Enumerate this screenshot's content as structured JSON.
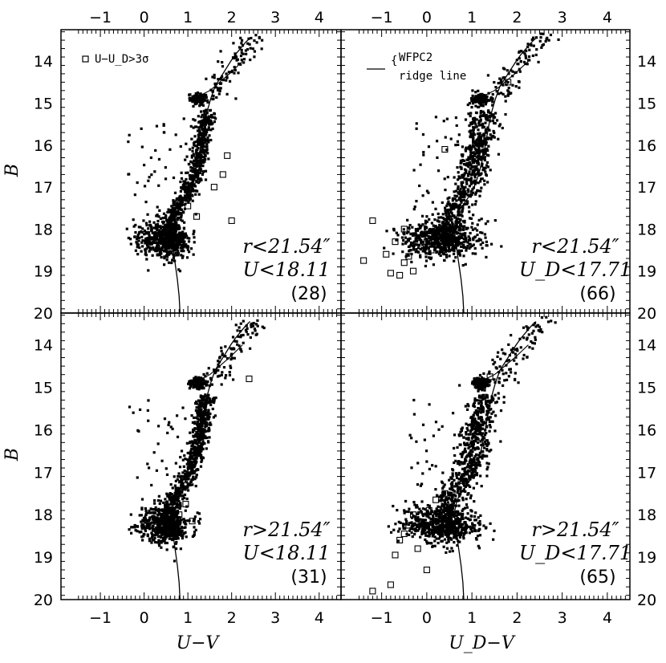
{
  "figure": {
    "x_axis_title_left": "U−V",
    "x_axis_title_right": "U_D−V",
    "y_axis_title": "B"
  },
  "legend": {
    "symbol_label": "U−U_D>3σ",
    "ridge_label_1": "WFPC2",
    "ridge_label_2": "ridge line"
  },
  "chart_data": {
    "type": "scatter",
    "layout": "2x2 panels, shared axes",
    "x_ticks": [
      -1,
      0,
      1,
      2,
      3,
      4
    ],
    "y_ticks": [
      14,
      15,
      16,
      17,
      18,
      19,
      20
    ],
    "xlim": [
      -1.9,
      4.5
    ],
    "ylim": [
      20,
      13.25
    ],
    "y_inverted": true,
    "ridge_line": {
      "x": [
        0.82,
        0.8,
        0.76,
        0.72,
        0.68,
        0.64,
        0.62,
        0.62,
        0.66,
        0.72,
        0.82,
        0.95,
        1.05,
        1.15,
        1.22,
        1.28,
        1.33,
        1.38,
        1.44,
        1.52,
        1.62,
        1.74,
        1.86,
        1.98,
        2.08,
        2.2,
        2.32,
        2.42
      ],
      "y": [
        20.0,
        19.6,
        19.2,
        18.9,
        18.6,
        18.3,
        18.1,
        17.9,
        17.7,
        17.55,
        17.4,
        17.2,
        17.0,
        16.7,
        16.4,
        16.1,
        15.8,
        15.5,
        15.2,
        14.9,
        14.6,
        14.4,
        14.2,
        14.0,
        13.85,
        13.7,
        13.55,
        13.45
      ]
    },
    "panels": [
      {
        "position": "top-left",
        "radius_label": "r<21.54″",
        "mag_limit_label": "U<18.11",
        "count_label": "(28)",
        "outliers_x": [
          1.0,
          1.2,
          1.6,
          1.8,
          1.9,
          2.0
        ],
        "outliers_y": [
          17.45,
          17.7,
          17.0,
          16.7,
          16.25,
          17.8
        ]
      },
      {
        "position": "top-right",
        "radius_label": "r<21.54″",
        "mag_limit_label": "U_D<17.71",
        "count_label": "(66)",
        "outliers_x": [
          -1.4,
          -1.2,
          -0.9,
          -0.8,
          -0.7,
          -0.6,
          -0.5,
          -0.5,
          -0.4,
          -0.3,
          -0.2,
          0.0,
          0.1,
          0.3,
          0.4,
          1.8
        ],
        "outliers_y": [
          18.75,
          17.8,
          18.6,
          19.05,
          18.3,
          19.1,
          18.8,
          18.0,
          18.65,
          19.0,
          18.2,
          18.3,
          18.5,
          18.1,
          16.1,
          14.5
        ]
      },
      {
        "position": "bottom-left",
        "radius_label": "r>21.54″",
        "mag_limit_label": "U<18.11",
        "count_label": "(31)",
        "outliers_x": [
          0.8,
          0.95,
          1.1,
          2.4
        ],
        "outliers_y": [
          18.0,
          17.75,
          18.15,
          14.8
        ]
      },
      {
        "position": "bottom-right",
        "radius_label": "r>21.54″",
        "mag_limit_label": "U_D<17.71",
        "count_label": "(65)",
        "outliers_x": [
          -1.2,
          -0.8,
          -0.7,
          -0.6,
          -0.5,
          -0.4,
          -0.3,
          -0.2,
          0.0,
          0.05,
          0.2,
          0.4,
          0.8,
          1.4
        ],
        "outliers_y": [
          19.8,
          19.65,
          18.95,
          18.6,
          18.45,
          18.25,
          18.0,
          18.8,
          19.3,
          17.9,
          17.65,
          17.5,
          17.2,
          14.75
        ]
      }
    ]
  }
}
